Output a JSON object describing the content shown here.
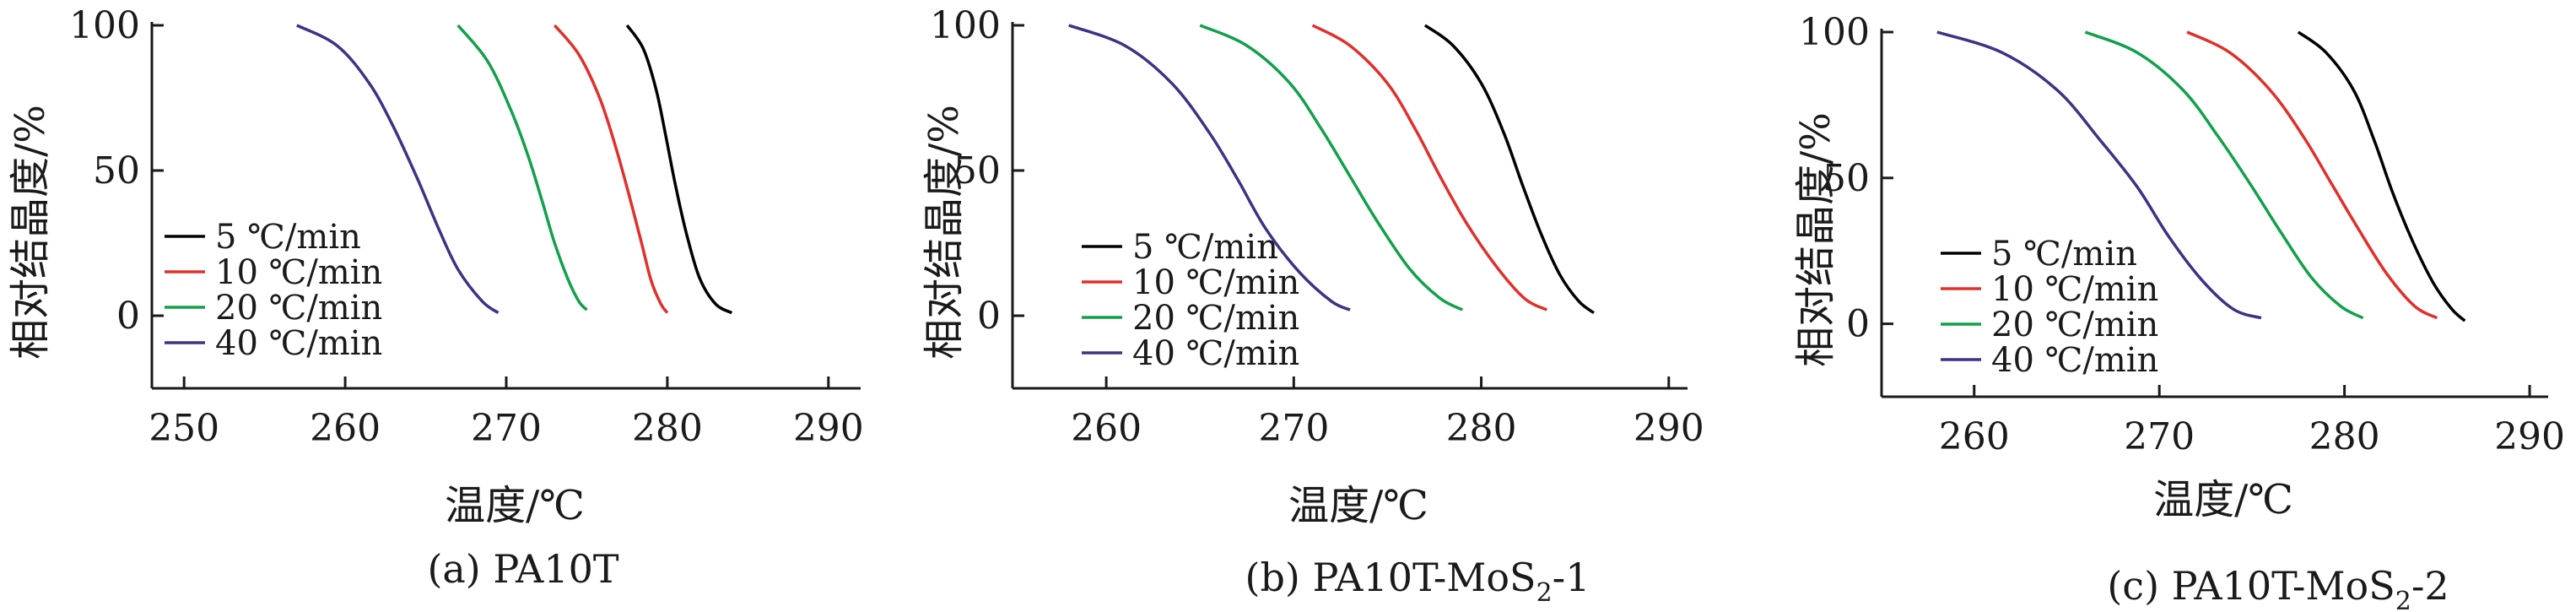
{
  "colors": {
    "5": "#000000",
    "10": "#e0302b",
    "20": "#12a04a",
    "40": "#3b3484"
  },
  "chart_data": [
    {
      "type": "line",
      "caption": "(a) PA10T",
      "xlabel": "温度/℃",
      "ylabel": "相对结晶度/%",
      "xlim": [
        248,
        292
      ],
      "ylim": [
        -25,
        100
      ],
      "xticks": [
        "250",
        "260",
        "270",
        "280",
        "290"
      ],
      "yticks": [
        "0",
        "50",
        "100"
      ],
      "grid": false,
      "legend": "lower-left",
      "series": [
        {
          "name": "5 ℃/min",
          "key": "5",
          "x": [
            277.5,
            278.5,
            279.3,
            279.9,
            280.5,
            281.2,
            282.0,
            283.0,
            284.0
          ],
          "y": [
            100,
            92,
            78,
            62,
            45,
            28,
            13,
            4,
            1
          ]
        },
        {
          "name": "10 ℃/min",
          "key": "10",
          "x": [
            273.0,
            274.5,
            275.8,
            276.8,
            277.6,
            278.4,
            279.0,
            279.6,
            280.0
          ],
          "y": [
            100,
            90,
            75,
            58,
            42,
            25,
            12,
            4,
            1
          ]
        },
        {
          "name": "20 ℃/min",
          "key": "20",
          "x": [
            267.0,
            268.8,
            270.2,
            271.3,
            272.2,
            273.0,
            273.8,
            274.5,
            275.0
          ],
          "y": [
            100,
            88,
            72,
            56,
            40,
            25,
            13,
            5,
            2
          ]
        },
        {
          "name": "40 ℃/min",
          "key": "40",
          "x": [
            257.0,
            259.5,
            261.5,
            263.0,
            264.5,
            265.8,
            267.0,
            268.5,
            269.5
          ],
          "y": [
            100,
            93,
            80,
            65,
            47,
            30,
            16,
            5,
            1
          ]
        }
      ]
    },
    {
      "type": "line",
      "caption": "(b) PA10T-MoS",
      "caption_sub": "2",
      "caption_tail": "-1",
      "xlabel": "温度/℃",
      "ylabel": "相对结晶度/%",
      "xlim": [
        255,
        291
      ],
      "ylim": [
        -25,
        100
      ],
      "xticks": [
        "260",
        "270",
        "280",
        "290"
      ],
      "yticks": [
        "0",
        "50",
        "100"
      ],
      "grid": false,
      "legend": "lower-left",
      "series": [
        {
          "name": "5 ℃/min",
          "key": "5",
          "x": [
            277.0,
            278.5,
            280.0,
            281.2,
            282.2,
            283.2,
            284.2,
            285.2,
            286.0
          ],
          "y": [
            100,
            93,
            80,
            63,
            45,
            28,
            14,
            5,
            1
          ]
        },
        {
          "name": "10 ℃/min",
          "key": "10",
          "x": [
            271.0,
            273.0,
            275.0,
            276.5,
            277.8,
            279.2,
            280.8,
            282.3,
            283.5
          ],
          "y": [
            100,
            93,
            80,
            64,
            48,
            32,
            17,
            6,
            2
          ]
        },
        {
          "name": "20 ℃/min",
          "key": "20",
          "x": [
            265.0,
            267.5,
            269.8,
            271.5,
            273.0,
            274.5,
            276.2,
            277.8,
            279.0
          ],
          "y": [
            100,
            93,
            80,
            64,
            48,
            32,
            16,
            6,
            2
          ]
        },
        {
          "name": "40 ℃/min",
          "key": "40",
          "x": [
            258.0,
            261.0,
            263.5,
            265.5,
            267.0,
            268.5,
            270.3,
            272.0,
            273.0
          ],
          "y": [
            100,
            93,
            80,
            63,
            47,
            30,
            15,
            5,
            2
          ]
        }
      ]
    },
    {
      "type": "line",
      "caption": "(c) PA10T-MoS",
      "caption_sub": "2",
      "caption_tail": "-2",
      "xlabel": "温度/℃",
      "ylabel": "相对结晶度/%",
      "xlim": [
        255,
        291
      ],
      "ylim": [
        -25,
        100
      ],
      "xticks": [
        "260",
        "270",
        "280",
        "290"
      ],
      "yticks": [
        "0",
        "50",
        "100"
      ],
      "grid": false,
      "legend": "lower-left",
      "series": [
        {
          "name": "5 ℃/min",
          "key": "5",
          "x": [
            277.5,
            279.0,
            280.5,
            281.6,
            282.6,
            283.7,
            284.8,
            285.8,
            286.5
          ],
          "y": [
            100,
            93,
            80,
            63,
            45,
            28,
            14,
            5,
            1
          ]
        },
        {
          "name": "10 ℃/min",
          "key": "10",
          "x": [
            271.5,
            273.8,
            276.0,
            277.8,
            279.3,
            280.8,
            282.3,
            283.8,
            285.0
          ],
          "y": [
            100,
            93,
            80,
            64,
            48,
            32,
            17,
            6,
            2
          ]
        },
        {
          "name": "20 ℃/min",
          "key": "20",
          "x": [
            266.0,
            268.8,
            271.3,
            273.2,
            274.9,
            276.5,
            278.2,
            279.8,
            281.0
          ],
          "y": [
            100,
            93,
            80,
            64,
            48,
            32,
            16,
            6,
            2
          ]
        },
        {
          "name": "40 ℃/min",
          "key": "40",
          "x": [
            258.0,
            261.5,
            264.5,
            266.8,
            268.8,
            270.5,
            272.3,
            274.0,
            275.5
          ],
          "y": [
            100,
            93,
            80,
            63,
            47,
            30,
            15,
            5,
            2
          ]
        }
      ]
    }
  ]
}
